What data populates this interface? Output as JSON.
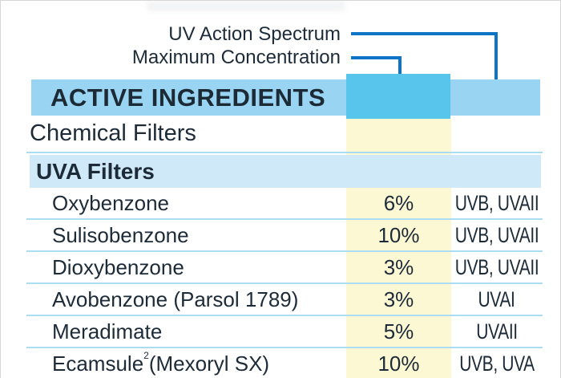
{
  "callouts": {
    "uv_action_spectrum_label": "UV Action Spectrum",
    "maximum_concentration_label": "Maximum Concentration"
  },
  "header": {
    "title": "ACTIVE INGREDIENTS"
  },
  "sections": {
    "chemical_filters_label": "Chemical Filters",
    "uva_filters_label": "UVA Filters"
  },
  "table": {
    "rows": [
      {
        "name": "Oxybenzone",
        "sup": "",
        "name_rest": "",
        "conc": "6%",
        "spectrum": "UVB, UVAII"
      },
      {
        "name": "Sulisobenzone",
        "sup": "",
        "name_rest": "",
        "conc": "10%",
        "spectrum": "UVB, UVAII"
      },
      {
        "name": "Dioxybenzone",
        "sup": "",
        "name_rest": "",
        "conc": "3%",
        "spectrum": "UVB, UVAII"
      },
      {
        "name": "Avobenzone (Parsol 1789)",
        "sup": "",
        "name_rest": "",
        "conc": "3%",
        "spectrum": "UVAI"
      },
      {
        "name": "Meradimate",
        "sup": "",
        "name_rest": "",
        "conc": "5%",
        "spectrum": "UVAII"
      },
      {
        "name": "Ecamsule",
        "sup": "2",
        "name_rest": " (Mexoryl SX)",
        "conc": "10%",
        "spectrum": "UVB, UVA"
      }
    ]
  },
  "colors": {
    "header_band": "#99d4f2",
    "concentration_header_cell": "#58c5ec",
    "section_band": "#cfe9f8",
    "concentration_column": "#fcf8d4",
    "row_separator": "#aadcf2",
    "callout_line": "#0e74c6",
    "text": "#1d2b38"
  }
}
